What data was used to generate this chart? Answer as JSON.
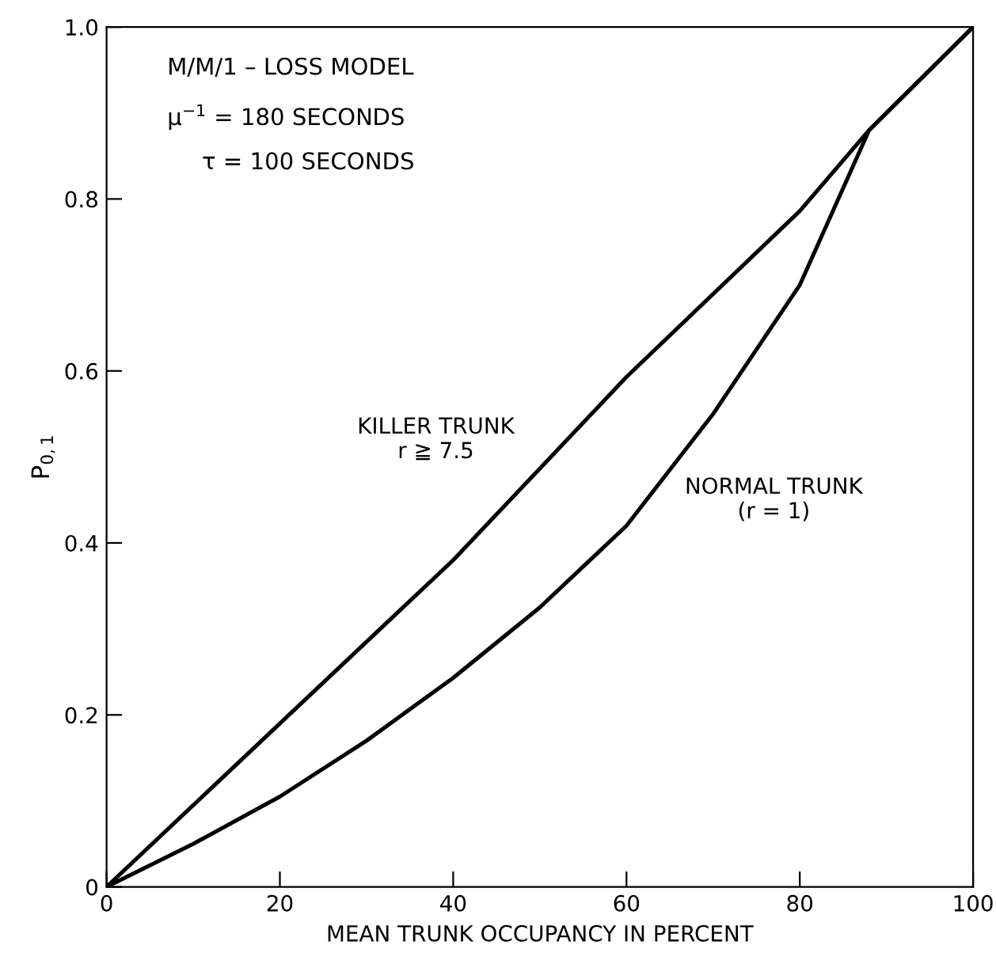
{
  "chart_data": {
    "type": "line",
    "xlabel": "MEAN TRUNK OCCUPANCY IN PERCENT",
    "ylabel": "P$_{0,1}$",
    "xlim": [
      0,
      100
    ],
    "ylim": [
      0,
      1.0
    ],
    "xticks": [
      0,
      20,
      40,
      60,
      80,
      100
    ],
    "yticks": [
      0,
      0.2,
      0.4,
      0.6,
      0.8,
      {
        "value": 1.0,
        "label": "1.0"
      }
    ],
    "grid": false,
    "legend": false,
    "marker": "none",
    "line_style": "solid",
    "series": [
      {
        "color": "#000000",
        "x": [
          0,
          20,
          40,
          60,
          80,
          88,
          100
        ],
        "values": [
          0,
          0.19,
          0.38,
          0.593,
          0.786,
          0.88,
          1.0
        ]
      },
      {
        "color": "#000000",
        "x": [
          0,
          10,
          20,
          30,
          40,
          50,
          60,
          70,
          80,
          88,
          100
        ],
        "values": [
          0,
          0.05,
          0.105,
          0.17,
          0.243,
          0.325,
          0.42,
          0.55,
          0.7,
          0.88,
          1.0
        ]
      }
    ],
    "annotations": [
      "M/M/1 – LOSS MODEL",
      "μ$^{−1}$ = 180 SECONDS",
      "τ = 100 SECONDS",
      "KILLER TRUNK\nr ≧ 7.5",
      "NORMAL TRUNK\n(r = 1)"
    ]
  }
}
